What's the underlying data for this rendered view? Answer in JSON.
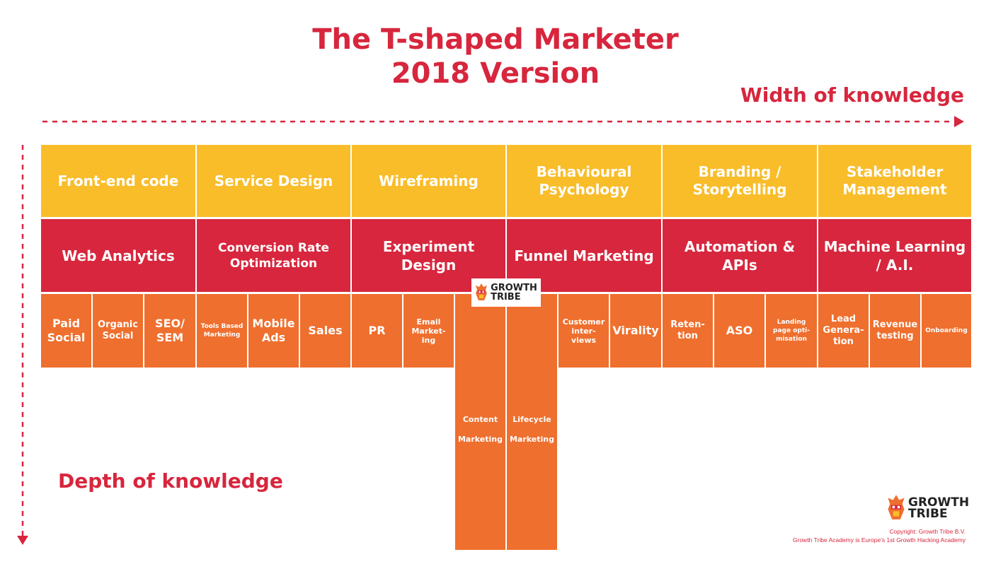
{
  "title": {
    "line1": "The T-shaped Marketer",
    "line2": "2018 Version"
  },
  "axis": {
    "width_label": "Width of knowledge",
    "depth_label": "Depth of knowledge"
  },
  "colors": {
    "accent_red": "#d7263d",
    "yellow": "#f9bd2a",
    "orange": "#ef6f2e"
  },
  "row1": [
    "Front-end code",
    "Service Design",
    "Wireframing",
    "Behavioural Psychology",
    "Branding / Storytelling",
    "Stakeholder Management"
  ],
  "row2": [
    "Web Analytics",
    "Conversion Rate Optimization",
    "Experiment Design",
    "Funnel Marketing",
    "Automation & APIs",
    "Machine Learning / A.I."
  ],
  "row3": [
    "Paid Social",
    "Organic Social",
    "SEO/ SEM",
    "Tools Based Marketing",
    "Mobile Ads",
    "Sales",
    "PR",
    "Email Market- ing",
    "",
    "",
    "Customer inter- views",
    "Virality",
    "Reten- tion",
    "ASO",
    "Landing page opti- misation",
    "Lead Genera- tion",
    "Revenue testing",
    "Onboarding"
  ],
  "deep": [
    "Content Marketing",
    "Lifecycle Marketing"
  ],
  "logo": {
    "line1": "GROWTH",
    "line2": "TRIBE",
    "icon": "tribal-mask-icon"
  },
  "copyright": {
    "line1": "Copyright: Growth Tribe B.V.",
    "line2": "Growth Tribe Academy is Europe's 1st Growth Hacking Academy"
  }
}
